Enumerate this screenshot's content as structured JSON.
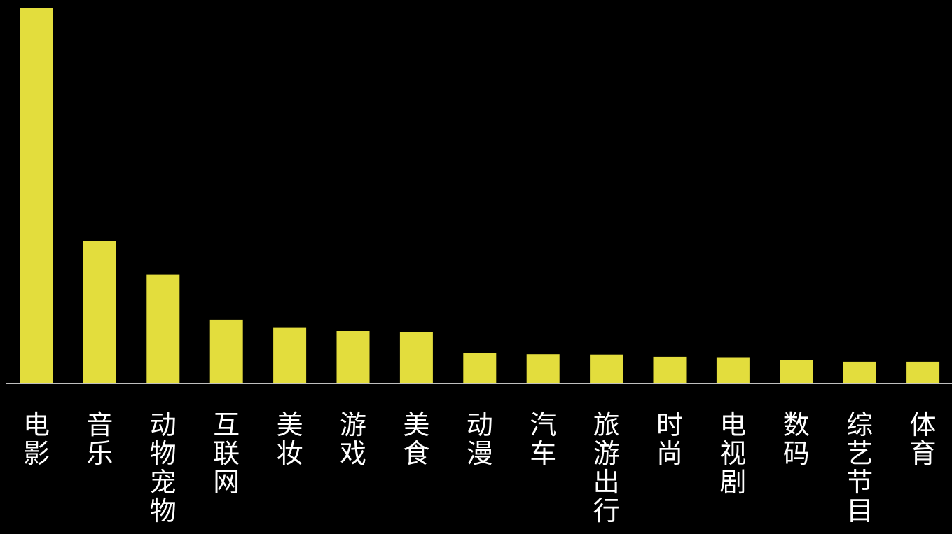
{
  "chart_data": {
    "type": "bar",
    "categories": [
      "电影",
      "音乐",
      "动物宠物",
      "互联网",
      "美妆",
      "游戏",
      "美食",
      "动漫",
      "汽车",
      "旅游出行",
      "时尚",
      "电视剧",
      "数码",
      "综艺节目",
      "体育"
    ],
    "values": [
      100,
      38,
      29,
      17,
      15,
      14,
      13.8,
      8.2,
      7.8,
      7.7,
      7.1,
      7.0,
      6.2,
      5.8,
      5.8
    ],
    "title": "",
    "xlabel": "",
    "ylabel": "",
    "ylim": [
      0,
      100
    ],
    "grid": false,
    "legend": "none"
  },
  "colors": {
    "background": "#000000",
    "bar": "#e3dd3d",
    "axis": "#bfbfbf",
    "label": "#ffffff"
  }
}
